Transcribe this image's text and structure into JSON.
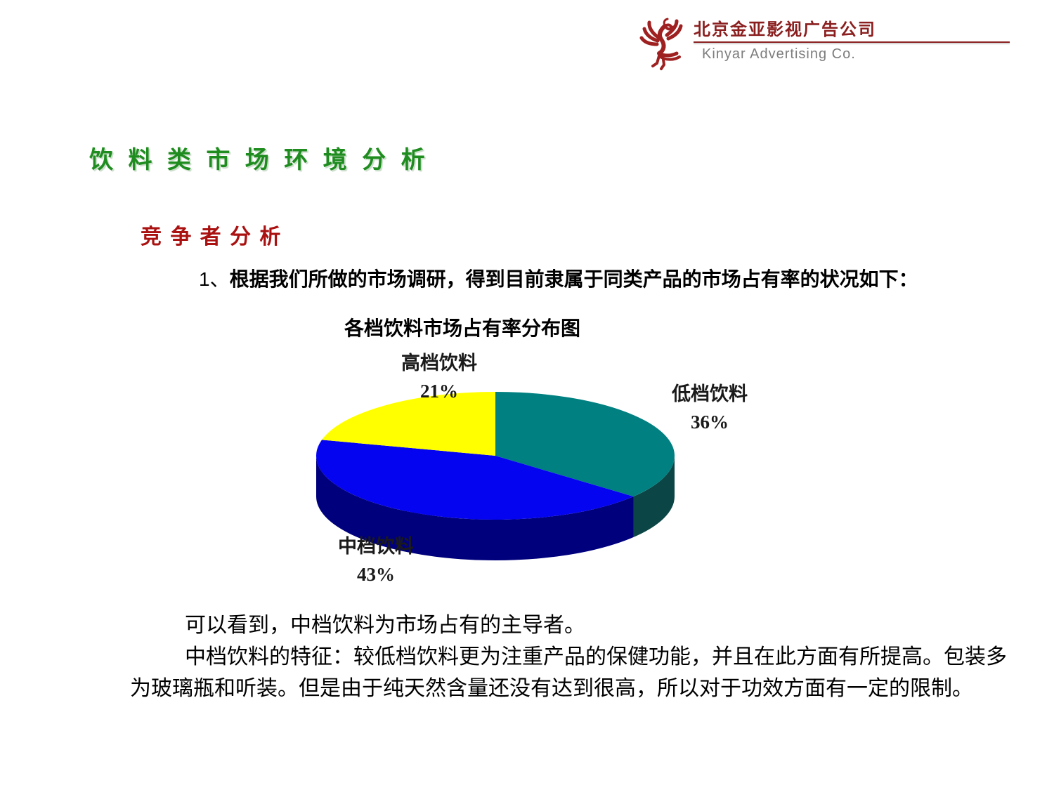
{
  "header": {
    "company_name_cn": "北京金亚影视广告公司",
    "company_name_en": "Kinyar  Advertising Co.",
    "brand_color": "#8B1F1F",
    "rule_color": "#8B2222"
  },
  "title": {
    "text": "饮 料 类 市 场 环 境 分 析",
    "color": "#1E8C1E"
  },
  "subtitle": {
    "text": "竞 争 者 分 析",
    "color": "#AA1111"
  },
  "intro": {
    "prefix": "1、",
    "text": "根据我们所做的市场调研，得到目前隶属于同类产品的市场占有率的状况如下："
  },
  "chart_data": {
    "type": "pie",
    "style": "3d",
    "title": "各档饮料市场占有率分布图",
    "start_angle_deg": 0,
    "direction": "clockwise",
    "legend_position": "none",
    "slices": [
      {
        "label": "低档饮料",
        "value": 36,
        "percent_label": "36%",
        "color": "#008080",
        "side_color": "#0B4545",
        "label_position": "right"
      },
      {
        "label": "中档饮料",
        "value": 43,
        "percent_label": "43%",
        "color": "#0404F0",
        "side_color": "#00007D",
        "label_position": "bottom-left"
      },
      {
        "label": "高档饮料",
        "value": 21,
        "percent_label": "21%",
        "color": "#FFFF00",
        "side_color": "#B8B800",
        "label_position": "top-left"
      }
    ]
  },
  "conclusion": {
    "lines": [
      "可以看到，中档饮料为市场占有的主导者。",
      "中档饮料的特征：较低档饮料更为注重产品的保健功能，并且在此方面有所提高。包装多",
      "为玻璃瓶和听装。但是由于纯天然含量还没有达到很高，所以对于功效方面有一定的限制。"
    ]
  }
}
